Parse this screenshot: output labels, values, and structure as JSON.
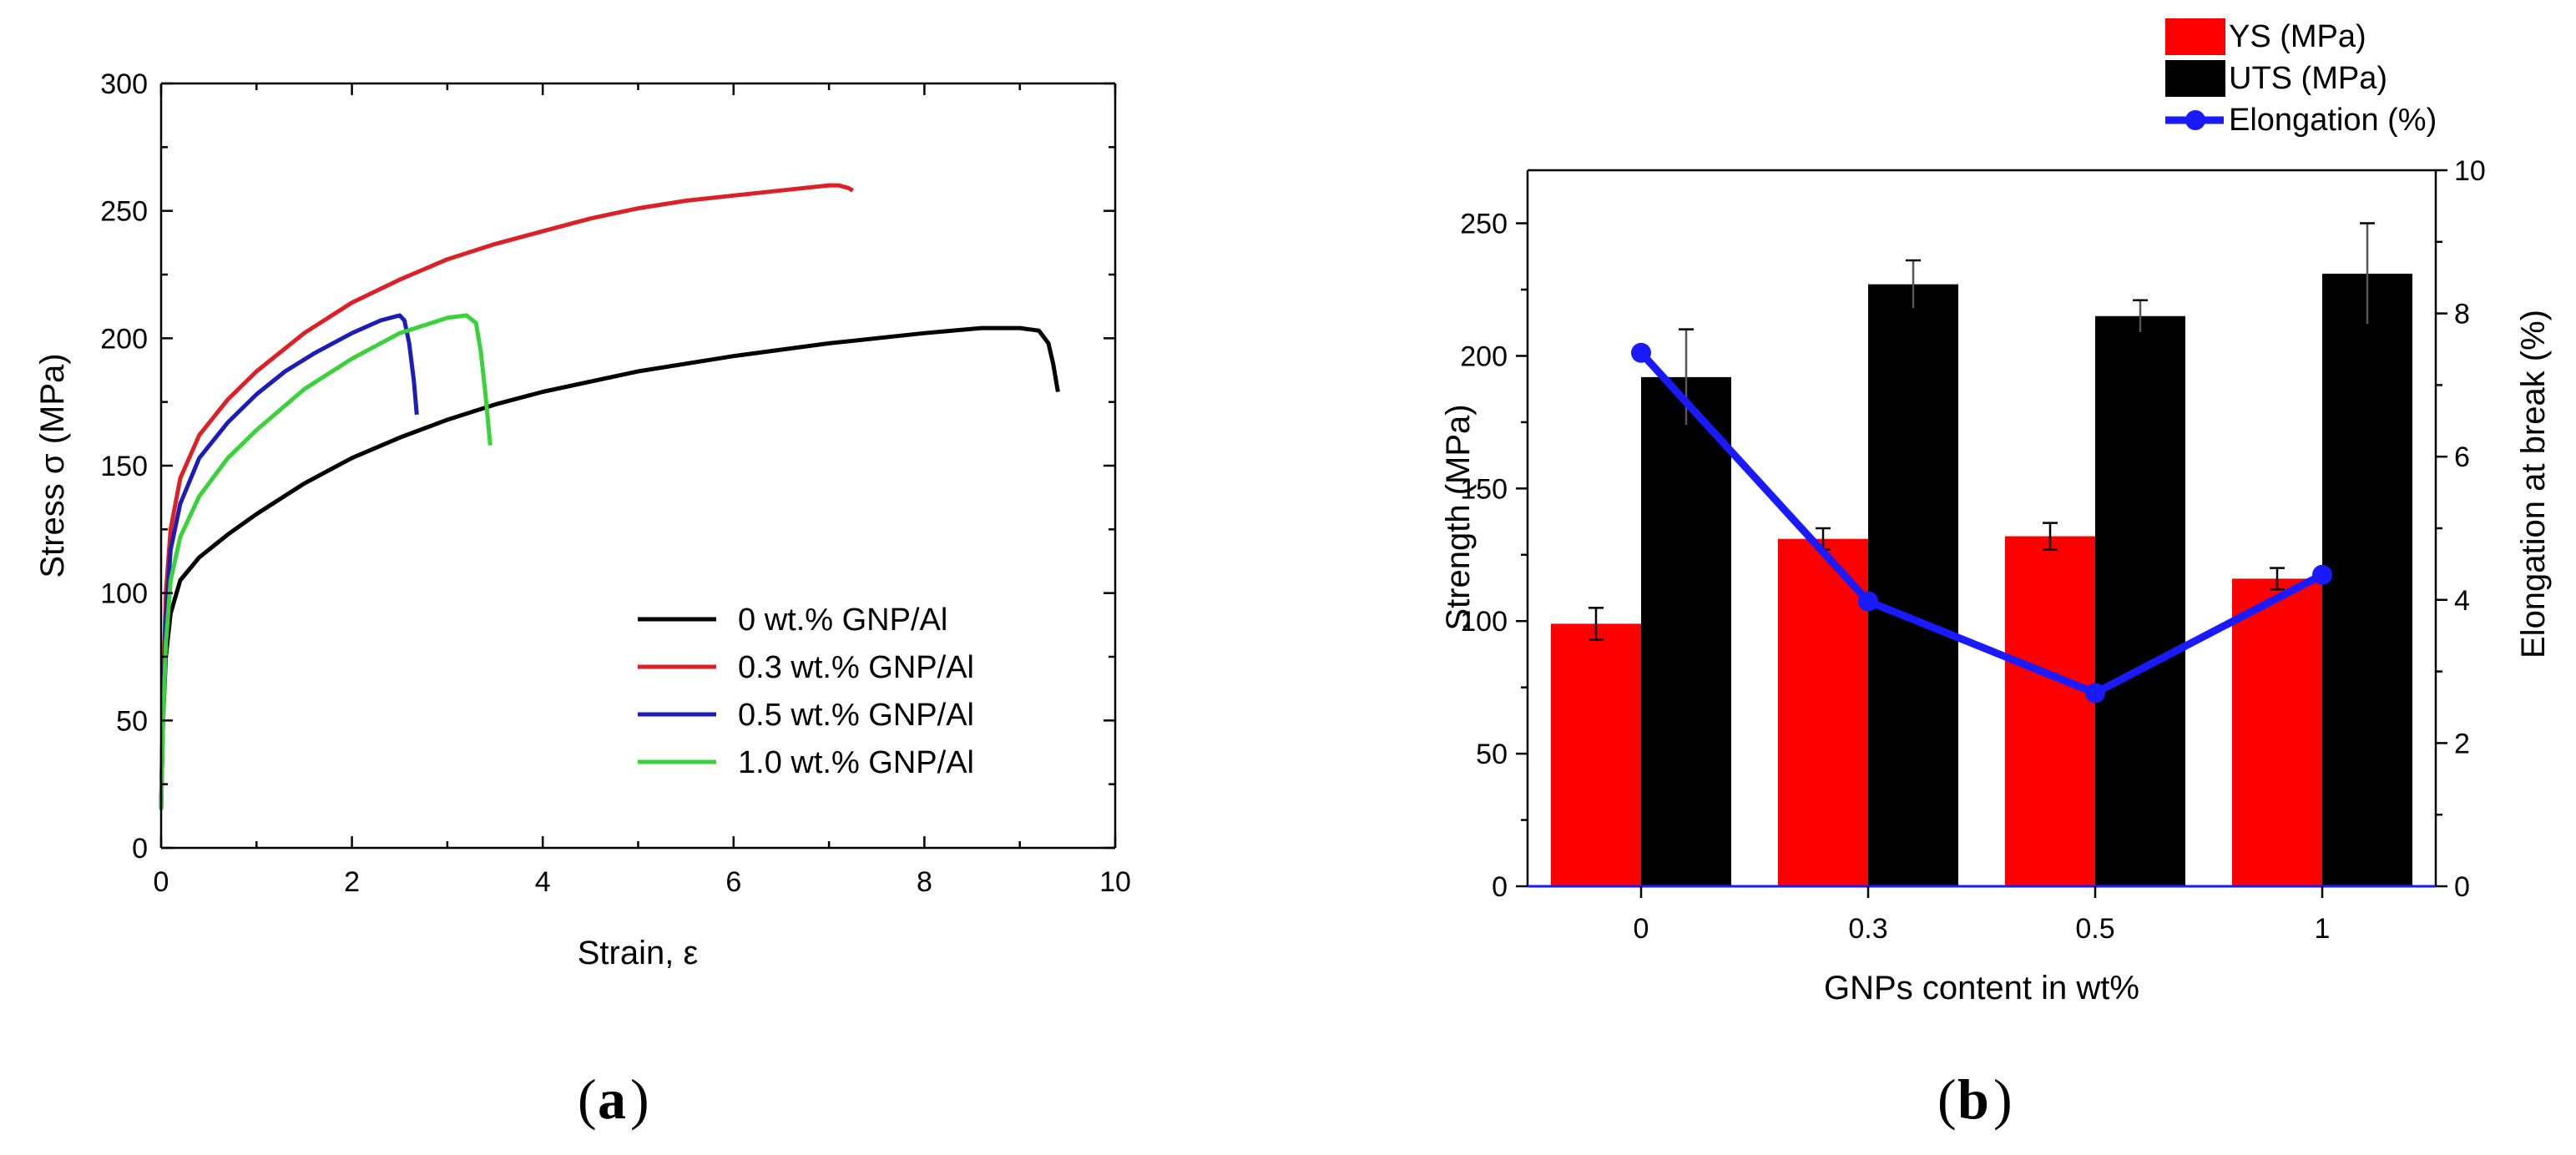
{
  "chart_data": [
    {
      "panel": "a",
      "type": "line",
      "panel_label": "a",
      "xlabel": "Strain, ε",
      "ylabel": "Stress σ (MPa)",
      "xlim": [
        0,
        10
      ],
      "ylim": [
        0,
        300
      ],
      "xticks": [
        "0",
        "2",
        "4",
        "6",
        "8",
        "10"
      ],
      "yticks": [
        "0",
        "50",
        "100",
        "150",
        "200",
        "250",
        "300"
      ],
      "grid": false,
      "legend_position": "bottom-right",
      "series": [
        {
          "name": "0 wt.% GNP/Al",
          "color": "#000000",
          "x": [
            0,
            0.02,
            0.05,
            0.1,
            0.2,
            0.4,
            0.7,
            1.0,
            1.5,
            2.0,
            2.5,
            3.0,
            3.5,
            4.0,
            5.0,
            6.0,
            7.0,
            8.0,
            8.6,
            9.0,
            9.2,
            9.3,
            9.35,
            9.4
          ],
          "y": [
            15,
            50,
            75,
            92,
            105,
            114,
            123,
            131,
            143,
            153,
            161,
            168,
            174,
            179,
            187,
            193,
            198,
            202,
            204,
            204,
            203,
            198,
            190,
            179
          ]
        },
        {
          "name": "0.3 wt.% GNP/Al",
          "color": "#dd1f26",
          "x": [
            0,
            0.02,
            0.05,
            0.1,
            0.2,
            0.4,
            0.7,
            1.0,
            1.5,
            2.0,
            2.5,
            3.0,
            3.5,
            4.0,
            4.5,
            5.0,
            5.5,
            6.0,
            6.5,
            7.0,
            7.1,
            7.2,
            7.25
          ],
          "y": [
            15,
            60,
            100,
            125,
            145,
            162,
            176,
            187,
            202,
            214,
            223,
            231,
            237,
            242,
            247,
            251,
            254,
            256,
            258,
            260,
            260,
            259,
            258
          ]
        },
        {
          "name": "0.5 wt.% GNP/Al",
          "color": "#1c1cb8",
          "x": [
            0,
            0.02,
            0.05,
            0.1,
            0.2,
            0.4,
            0.7,
            1.0,
            1.3,
            1.6,
            2.0,
            2.3,
            2.5,
            2.55,
            2.6,
            2.65,
            2.68
          ],
          "y": [
            15,
            55,
            90,
            117,
            135,
            153,
            167,
            178,
            187,
            194,
            202,
            207,
            209,
            207,
            198,
            183,
            170
          ]
        },
        {
          "name": "1.0 wt.% GNP/Al",
          "color": "#39d339",
          "x": [
            0,
            0.02,
            0.05,
            0.1,
            0.2,
            0.4,
            0.7,
            1.0,
            1.5,
            2.0,
            2.5,
            3.0,
            3.2,
            3.3,
            3.35,
            3.4,
            3.45
          ],
          "y": [
            15,
            50,
            80,
            105,
            122,
            138,
            153,
            164,
            180,
            192,
            202,
            208,
            209,
            206,
            195,
            178,
            158
          ]
        }
      ]
    },
    {
      "panel": "b",
      "type": "bar",
      "panel_label": "b",
      "xlabel": "GNPs content in wt%",
      "ylabel": "Strength (MPa)",
      "y2label": "Elongation at break (%)",
      "categories": [
        "0",
        "0.3",
        "0.5",
        "1"
      ],
      "ylim": [
        0,
        270
      ],
      "y2lim": [
        0,
        10
      ],
      "yticks": [
        "0",
        "50",
        "100",
        "150",
        "200",
        "250"
      ],
      "y2ticks": [
        "0",
        "2",
        "4",
        "6",
        "8",
        "10"
      ],
      "grid": false,
      "legend_position": "top-right",
      "series": [
        {
          "name": "YS (MPa)",
          "type": "bar",
          "color": "#ff0000",
          "values": [
            99,
            131,
            132,
            116
          ],
          "errors": [
            6,
            4,
            5,
            4
          ]
        },
        {
          "name": "UTS (MPa)",
          "type": "bar",
          "color": "#000000",
          "values": [
            192,
            227,
            215,
            231
          ],
          "errors": [
            18,
            9,
            6,
            19
          ]
        },
        {
          "name": "Elongation (%)",
          "type": "line",
          "axis": "right",
          "color": "#1a1aff",
          "values": [
            7.45,
            3.98,
            2.7,
            4.35
          ]
        }
      ]
    }
  ]
}
